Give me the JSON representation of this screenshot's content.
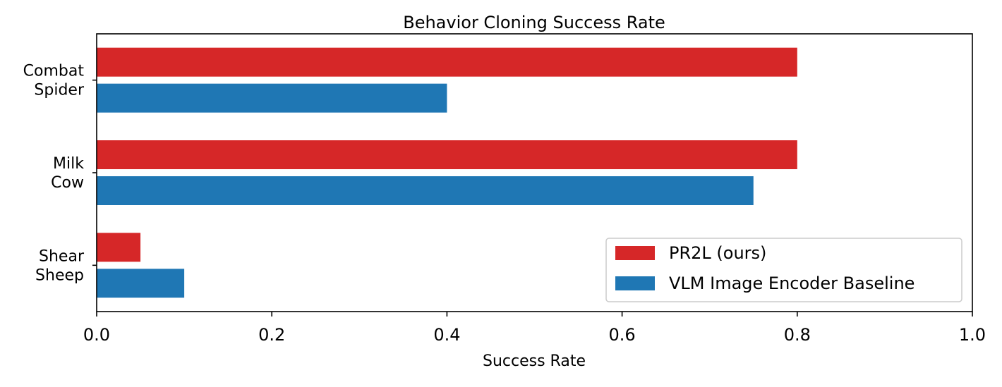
{
  "chart_data": {
    "type": "bar",
    "orientation": "horizontal",
    "title": "Behavior Cloning Success Rate",
    "xlabel": "Success Rate",
    "ylabel": "",
    "xlim": [
      0,
      1.0
    ],
    "xticks": [
      "0.0",
      "0.2",
      "0.4",
      "0.6",
      "0.8",
      "1.0"
    ],
    "categories": [
      {
        "line1": "Combat",
        "line2": "Spider"
      },
      {
        "line1": "Milk",
        "line2": "Cow"
      },
      {
        "line1": "Shear",
        "line2": "Sheep"
      }
    ],
    "series": [
      {
        "name": "PR2L (ours)",
        "color": "#d62728",
        "values": [
          0.8,
          0.8,
          0.05
        ]
      },
      {
        "name": "VLM Image Encoder Baseline",
        "color": "#1f77b4",
        "values": [
          0.4,
          0.75,
          0.1
        ]
      }
    ],
    "grid": false,
    "legend_position": "lower-right"
  }
}
